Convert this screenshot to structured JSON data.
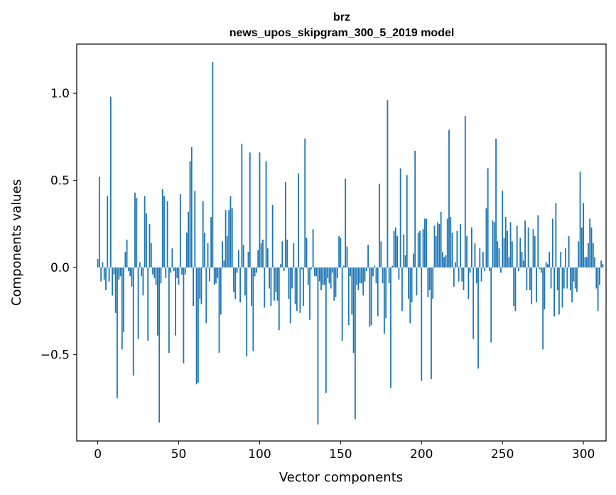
{
  "chart_data": {
    "type": "bar",
    "title_line1": "brz",
    "title_line2": "news_upos_skipgram_300_5_2019 model",
    "xlabel": "Vector components",
    "ylabel": "Components values",
    "xlim": [
      -13,
      314
    ],
    "ylim": [
      -0.995,
      1.282
    ],
    "xticks": [
      0,
      50,
      100,
      150,
      200,
      250,
      300
    ],
    "xtick_labels": [
      "0",
      "50",
      "100",
      "150",
      "200",
      "250",
      "300"
    ],
    "yticks": [
      -0.5,
      0.0,
      0.5,
      1.0
    ],
    "ytick_labels": [
      "−0.5",
      "0.0",
      "0.5",
      "1.0"
    ],
    "bar_color": "#1f77b4",
    "values": [
      0.05,
      0.52,
      -0.08,
      0.03,
      -0.07,
      -0.13,
      0.41,
      -0.08,
      0.98,
      -0.16,
      -0.04,
      -0.26,
      -0.75,
      -0.07,
      -0.05,
      -0.47,
      -0.37,
      0.09,
      0.16,
      -0.02,
      -0.05,
      -0.11,
      -0.62,
      0.43,
      0.4,
      -0.41,
      0.03,
      -0.05,
      -0.16,
      0.41,
      0.31,
      -0.42,
      0.25,
      0.14,
      -0.04,
      -0.06,
      -0.1,
      -0.39,
      -0.89,
      -0.09,
      0.45,
      0.41,
      -0.06,
      0.38,
      -0.49,
      -0.03,
      0.11,
      -0.02,
      -0.39,
      -0.06,
      -0.1,
      0.42,
      -0.04,
      -0.55,
      -0.04,
      0.2,
      0.32,
      0.61,
      0.69,
      -0.22,
      0.44,
      -0.67,
      -0.66,
      -0.18,
      -0.21,
      0.38,
      0.2,
      -0.32,
      0.14,
      -0.08,
      0.29,
      1.18,
      -0.1,
      -0.09,
      -0.06,
      -0.49,
      -0.27,
      0.15,
      0.04,
      0.33,
      0.18,
      0.33,
      0.41,
      0.34,
      -0.14,
      -0.18,
      -0.03,
      0.1,
      -0.2,
      0.71,
      0.13,
      -0.16,
      -0.51,
      0.09,
      0.66,
      -0.22,
      -0.48,
      -0.05,
      -0.03,
      0.1,
      0.66,
      0.14,
      0.16,
      -0.23,
      0.61,
      0.11,
      -0.12,
      -0.22,
      0.36,
      -0.19,
      -0.14,
      -0.19,
      -0.36,
      0.02,
      0.15,
      -0.02,
      0.49,
      0.16,
      -0.18,
      -0.32,
      -0.12,
      0.14,
      -0.21,
      -0.25,
      0.54,
      -0.26,
      -0.01,
      -0.22,
      0.74,
      0.17,
      -0.1,
      -0.3,
      -0.01,
      0.22,
      -0.05,
      -0.05,
      -0.9,
      -0.08,
      -0.13,
      -0.1,
      -0.1,
      -0.72,
      -0.06,
      -0.09,
      -0.12,
      -0.03,
      -0.19,
      -0.17,
      -0.06,
      0.18,
      0.17,
      -0.42,
      0.01,
      0.51,
      0.12,
      -0.33,
      -0.05,
      -0.27,
      -0.49,
      -0.87,
      -0.1,
      -0.13,
      -0.09,
      -0.09,
      -0.16,
      -0.08,
      -0.02,
      0.13,
      -0.34,
      -0.33,
      -0.05,
      0.01,
      -0.09,
      -0.28,
      0.48,
      0.15,
      -0.09,
      -0.38,
      -0.29,
      0.96,
      -0.09,
      -0.69,
      0.01,
      0.21,
      0.23,
      0.18,
      -0.07,
      0.57,
      -0.25,
      0.19,
      0.07,
      0.53,
      -0.18,
      -0.32,
      -0.2,
      0.08,
      0.67,
      -0.16,
      0.2,
      0.21,
      -0.65,
      0.22,
      0.28,
      0.28,
      -0.17,
      -0.13,
      -0.64,
      -0.18,
      0.24,
      0.18,
      0.26,
      0.25,
      0.32,
      0.09,
      0.06,
      0.07,
      0.28,
      0.79,
      0.29,
      0.2,
      -0.11,
      0.03,
      0.21,
      -0.08,
      0.25,
      -0.08,
      -0.13,
      0.87,
      0.18,
      -0.18,
      -0.03,
      0.23,
      -0.41,
      0.14,
      -0.09,
      -0.58,
      0.11,
      -0.08,
      0.09,
      -0.02,
      0.34,
      0.57,
      -0.02,
      -0.43,
      0.27,
      0.26,
      0.74,
      0.15,
      0.11,
      -0.03,
      0.44,
      0.17,
      0.29,
      0.21,
      0.06,
      0.26,
      0.15,
      -0.22,
      -0.25,
      0.24,
      -0.02,
      0.17,
      0.09,
      0.04,
      0.27,
      -0.13,
      0.23,
      -0.13,
      -0.21,
      0.22,
      0.18,
      -0.2,
      0.3,
      -0.01,
      -0.03,
      -0.47,
      -0.24,
      0.03,
      0.02,
      0.09,
      -0.12,
      0.28,
      -0.28,
      0.37,
      -0.13,
      -0.27,
      0.09,
      -0.23,
      -0.12,
      0.11,
      -0.12,
      0.18,
      -0.13,
      -0.2,
      -0.08,
      -0.12,
      -0.14,
      0.15,
      0.55,
      0.23,
      0.37,
      0.06,
      0.06,
      0.14,
      0.28,
      0.23,
      0.14,
      0.06,
      -0.12,
      -0.25,
      -0.1,
      0.04,
      0.02
    ]
  }
}
